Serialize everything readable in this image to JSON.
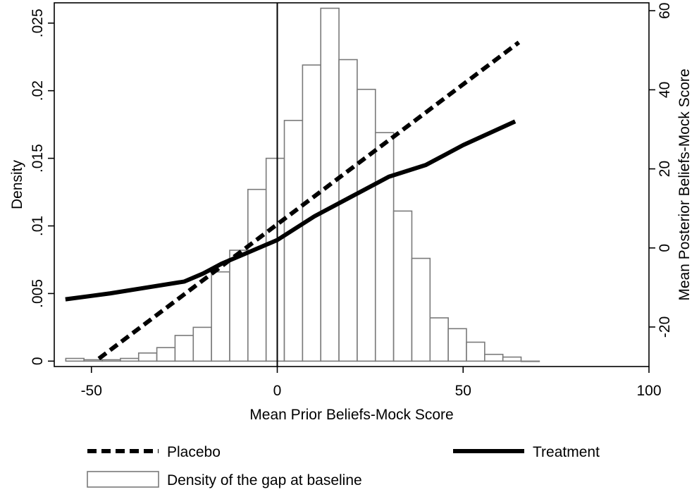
{
  "chart_data": {
    "type": "bar",
    "grid": false,
    "legend_placement": "bottom",
    "x_axis": {
      "label": "Mean Prior Beliefs-Mock Score",
      "range": [
        -60,
        100
      ],
      "ticks": [
        -50,
        0,
        50,
        100
      ],
      "tick_labels": [
        "-50",
        "0",
        "50",
        "100"
      ]
    },
    "y_axis_left": {
      "label": "Density",
      "range": [
        -0.0004,
        0.0265
      ],
      "ticks": [
        0,
        0.005,
        0.01,
        0.015,
        0.02,
        0.025
      ],
      "tick_labels": [
        "0",
        ".005",
        ".01",
        ".015",
        ".02",
        ".025"
      ]
    },
    "y_axis_right": {
      "label": "Mean Posterior Beliefs-Mock Score",
      "range": [
        -30,
        62
      ],
      "ticks": [
        -20,
        0,
        20,
        40,
        60
      ],
      "tick_labels": [
        "-20",
        "0",
        "20",
        "40",
        "60"
      ]
    },
    "reference_line_x": 0,
    "histogram": {
      "name": "Density of the gap at baseline",
      "axis": "left",
      "bin_width": 4.9,
      "bin_starts": [
        -56.9,
        -52,
        -47.1,
        -42.2,
        -37.3,
        -32.4,
        -27.5,
        -22.6,
        -17.7,
        -12.8,
        -7.9,
        -3,
        1.9,
        6.8,
        11.7,
        16.6,
        21.5,
        26.4,
        31.3,
        36.2,
        41.1,
        46,
        50.9,
        55.8,
        60.7,
        65.6
      ],
      "values": [
        0.0002,
        0.0001,
        0.0001,
        0.0002,
        0.0006,
        0.001,
        0.0019,
        0.0025,
        0.0066,
        0.0082,
        0.0127,
        0.015,
        0.0178,
        0.0219,
        0.0261,
        0.0223,
        0.0201,
        0.0169,
        0.0111,
        0.0076,
        0.0032,
        0.0024,
        0.0014,
        0.0005,
        0.0003,
        0
      ]
    },
    "series": [
      {
        "name": "Placebo",
        "axis": "right",
        "style": "dashed",
        "x": [
          -48,
          65
        ],
        "y": [
          -28,
          52
        ]
      },
      {
        "name": "Treatment",
        "axis": "right",
        "style": "solid",
        "x": [
          -57,
          -45,
          -35,
          -25,
          -20,
          -15,
          -10,
          -5,
          0,
          10,
          20,
          30,
          40,
          50,
          64
        ],
        "y": [
          -13,
          -11.5,
          -10,
          -8.5,
          -6.5,
          -4,
          -2,
          0,
          2,
          8,
          13,
          18,
          21,
          26,
          32
        ]
      }
    ],
    "legend": {
      "placebo": "Placebo",
      "treatment": "Treatment",
      "histogram": "Density of the gap at baseline"
    }
  }
}
